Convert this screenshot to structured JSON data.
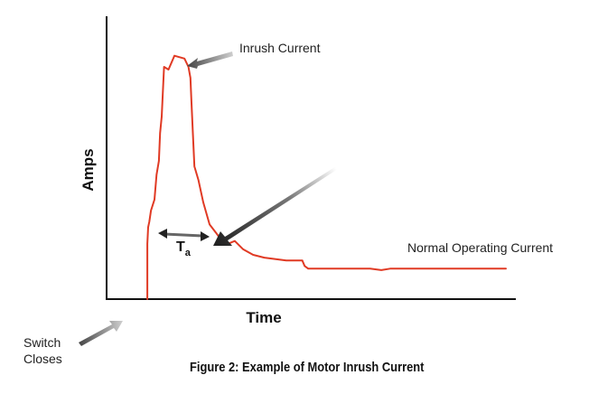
{
  "chart_data": {
    "type": "line",
    "xlabel": "Time",
    "ylabel": "Amps",
    "xlim": [
      0,
      100
    ],
    "ylim": [
      0,
      100
    ],
    "grid": false,
    "series": [
      {
        "color": "#e03a24",
        "x": [
          10.2,
          10.2,
          10.4,
          10.7,
          11.1,
          12.0,
          12.5,
          13.1,
          13.4,
          13.8,
          14.4,
          15.5,
          17.0,
          19.5,
          20.5,
          21.0,
          21.2,
          21.6,
          22.0,
          23.0,
          24.2,
          25.8,
          27.4,
          28.9,
          30.5,
          31.2,
          32.1,
          34.2,
          36.7,
          39.5,
          45.0,
          49.0,
          49.6,
          50.5,
          57.0,
          60.0,
          66.0,
          68.8,
          71.0,
          73.0,
          79.0,
          84.5,
          88.0,
          100.0
        ],
        "y": [
          0,
          20,
          26,
          28,
          32,
          36,
          45,
          50,
          60,
          66,
          84,
          83,
          88,
          87,
          84,
          80,
          73,
          60,
          48,
          43,
          35,
          27,
          24,
          21,
          20,
          20.5,
          21,
          18,
          16,
          15,
          14,
          14,
          12,
          11,
          11,
          11,
          11,
          10.5,
          11,
          11,
          11,
          11,
          11,
          11
        ]
      }
    ],
    "annotations": {
      "inrush": "Inrush Current",
      "normal": "Normal Operating Current",
      "switch_line1": "Switch",
      "switch_line2": "Closes",
      "duration_main": "T",
      "duration_sub": "a"
    }
  },
  "caption": "Figure 2:  Example of Motor Inrush Current",
  "colors": {
    "curve": "#e03a24",
    "axis": "#111111",
    "arrow": "#555555"
  }
}
